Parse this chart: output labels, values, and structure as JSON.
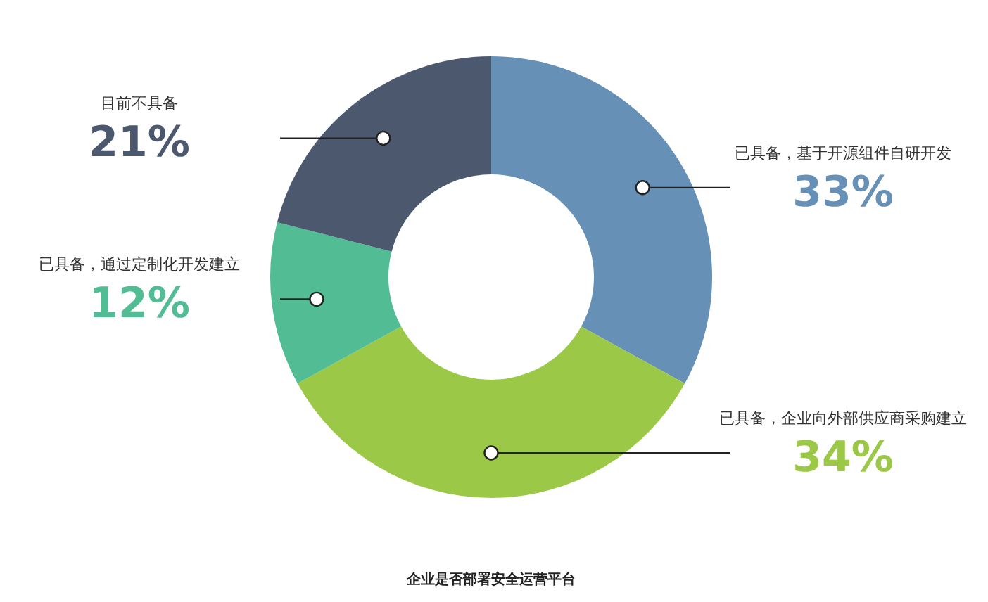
{
  "chart_data": {
    "type": "donut",
    "categories": [
      "已具备，基于开源组件自研开发",
      "已具备，企业向外部供应商采购建立",
      "已具备，通过定制化开发建立",
      "目前不具备"
    ],
    "values": [
      33,
      34,
      12,
      21
    ],
    "colors": [
      "#6690b5",
      "#9bc846",
      "#52bd94",
      "#4b586e"
    ],
    "value_labels": [
      "33%",
      "34%",
      "12%",
      "21%"
    ],
    "annotations": [
      "企业是否部署安全运营平台"
    ]
  }
}
